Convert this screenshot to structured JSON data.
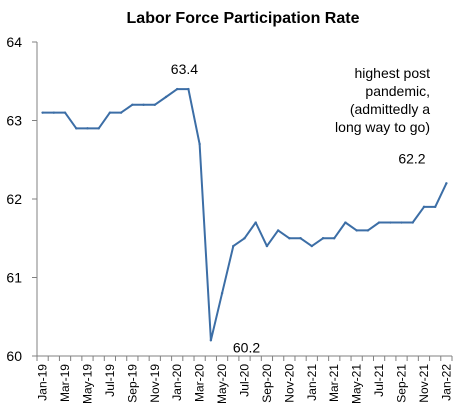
{
  "chart_data": {
    "type": "line",
    "title": "Labor Force Participation Rate",
    "xlabel": "",
    "ylabel": "",
    "ylim": [
      60,
      64
    ],
    "yticks": [
      60,
      61,
      62,
      63,
      64
    ],
    "x": [
      "Jan-19",
      "Feb-19",
      "Mar-19",
      "Apr-19",
      "May-19",
      "Jun-19",
      "Jul-19",
      "Aug-19",
      "Sep-19",
      "Oct-19",
      "Nov-19",
      "Dec-19",
      "Jan-20",
      "Feb-20",
      "Mar-20",
      "Apr-20",
      "May-20",
      "Jun-20",
      "Jul-20",
      "Aug-20",
      "Sep-20",
      "Oct-20",
      "Nov-20",
      "Dec-20",
      "Jan-21",
      "Feb-21",
      "Mar-21",
      "Apr-21",
      "May-21",
      "Jun-21",
      "Jul-21",
      "Aug-21",
      "Sep-21",
      "Oct-21",
      "Nov-21",
      "Dec-21",
      "Jan-22"
    ],
    "series": [
      {
        "values": [
          63.1,
          63.1,
          63.1,
          62.9,
          62.9,
          62.9,
          63.1,
          63.1,
          63.2,
          63.2,
          63.2,
          63.3,
          63.4,
          63.4,
          62.7,
          60.2,
          60.8,
          61.4,
          61.5,
          61.7,
          61.4,
          61.6,
          61.5,
          61.5,
          61.4,
          61.5,
          61.5,
          61.7,
          61.6,
          61.6,
          61.7,
          61.7,
          61.7,
          61.7,
          61.9,
          61.9,
          62.2
        ]
      }
    ],
    "xtick_labels": [
      "Jan-19",
      "Mar-19",
      "May-19",
      "Jul-19",
      "Sep-19",
      "Nov-19",
      "Jan-20",
      "Mar-20",
      "May-20",
      "Jul-20",
      "Sep-20",
      "Nov-20",
      "Jan-21",
      "Mar-21",
      "May-21",
      "Jul-21",
      "Sep-21",
      "Nov-21",
      "Jan-22"
    ],
    "annotations": [
      {
        "text": "63.4",
        "x": "Feb-20",
        "y": 63.4
      },
      {
        "text": "60.2",
        "x": "Jul-20",
        "y": 60.2
      },
      {
        "text": "62.2",
        "x": "Nov-21",
        "y": 62.2
      }
    ],
    "note_lines": [
      "highest post",
      "pandemic,",
      "(admittedly a",
      "long way to go)"
    ],
    "line_color": "#3c6ea6",
    "axis_color": "#808080",
    "grid": false,
    "legend": "none"
  }
}
